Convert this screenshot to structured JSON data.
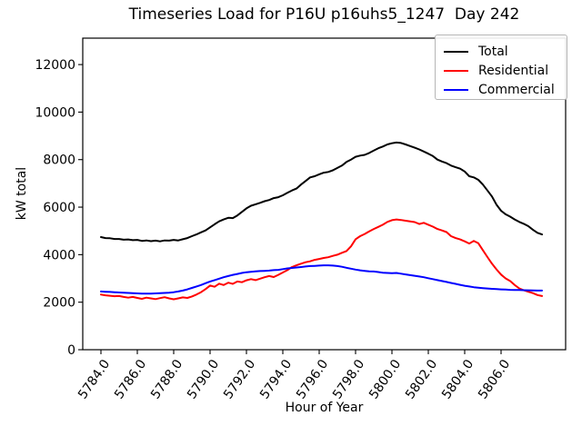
{
  "figure": {
    "title": "Timeseries Load for P16U p16uhs5_1247  Day 242"
  },
  "chart_data": {
    "type": "line",
    "title": "Timeseries Load for P16U p16uhs5_1247  Day 242",
    "xlabel": "Hour of Year",
    "ylabel": "kW total",
    "xlim": [
      5783.0,
      5809.55
    ],
    "ylim": [
      0,
      13112
    ],
    "grid": false,
    "legend_position": "upper right",
    "xticks": [
      5784,
      5786,
      5788,
      5790,
      5792,
      5794,
      5796,
      5798,
      5800,
      5802,
      5804,
      5806
    ],
    "xtick_labels": [
      "5784.0",
      "5786.0",
      "5788.0",
      "5790.0",
      "5792.0",
      "5794.0",
      "5796.0",
      "5798.0",
      "5800.0",
      "5802.0",
      "5804.0",
      "5806.0"
    ],
    "yticks": [
      0,
      2000,
      4000,
      6000,
      8000,
      10000,
      12000
    ],
    "ytick_labels": [
      "0",
      "2000",
      "4000",
      "6000",
      "8000",
      "10000",
      "12000"
    ],
    "x_start": 5784.0,
    "x_step": 0.25,
    "series": [
      {
        "name": "Total",
        "color": "#000000",
        "values": [
          4740,
          4700,
          4690,
          4660,
          4660,
          4630,
          4640,
          4610,
          4620,
          4580,
          4600,
          4570,
          4590,
          4560,
          4600,
          4590,
          4620,
          4600,
          4650,
          4700,
          4780,
          4850,
          4940,
          5020,
          5150,
          5280,
          5400,
          5480,
          5550,
          5540,
          5650,
          5800,
          5950,
          6060,
          6120,
          6180,
          6250,
          6300,
          6380,
          6420,
          6500,
          6600,
          6700,
          6780,
          6950,
          7100,
          7250,
          7300,
          7380,
          7450,
          7480,
          7550,
          7650,
          7750,
          7900,
          8000,
          8120,
          8170,
          8200,
          8280,
          8380,
          8480,
          8550,
          8640,
          8690,
          8720,
          8700,
          8640,
          8570,
          8500,
          8430,
          8340,
          8250,
          8150,
          8000,
          7920,
          7850,
          7750,
          7680,
          7620,
          7500,
          7300,
          7250,
          7150,
          6950,
          6700,
          6450,
          6100,
          5850,
          5700,
          5600,
          5480,
          5380,
          5300,
          5200,
          5050,
          4920,
          4850
        ]
      },
      {
        "name": "Residential",
        "color": "#ff0000",
        "values": [
          2320,
          2290,
          2270,
          2250,
          2260,
          2220,
          2190,
          2220,
          2180,
          2140,
          2190,
          2160,
          2130,
          2170,
          2210,
          2160,
          2120,
          2160,
          2200,
          2180,
          2240,
          2320,
          2420,
          2550,
          2700,
          2650,
          2780,
          2720,
          2820,
          2770,
          2870,
          2840,
          2920,
          2970,
          2930,
          2990,
          3050,
          3100,
          3060,
          3150,
          3250,
          3350,
          3480,
          3550,
          3620,
          3680,
          3720,
          3780,
          3820,
          3860,
          3890,
          3950,
          4000,
          4080,
          4150,
          4350,
          4650,
          4780,
          4870,
          4980,
          5080,
          5170,
          5260,
          5380,
          5450,
          5480,
          5460,
          5430,
          5400,
          5370,
          5290,
          5340,
          5260,
          5180,
          5080,
          5020,
          4950,
          4780,
          4700,
          4640,
          4560,
          4470,
          4580,
          4480,
          4190,
          3900,
          3620,
          3380,
          3160,
          3000,
          2890,
          2720,
          2580,
          2500,
          2440,
          2380,
          2300,
          2260
        ]
      },
      {
        "name": "Commercial",
        "color": "#0000ff",
        "values": [
          2450,
          2440,
          2430,
          2420,
          2410,
          2400,
          2390,
          2380,
          2370,
          2360,
          2360,
          2360,
          2370,
          2380,
          2390,
          2400,
          2420,
          2450,
          2490,
          2540,
          2600,
          2660,
          2720,
          2800,
          2870,
          2930,
          2990,
          3050,
          3100,
          3150,
          3190,
          3230,
          3260,
          3280,
          3300,
          3310,
          3320,
          3330,
          3350,
          3360,
          3390,
          3420,
          3440,
          3460,
          3480,
          3500,
          3520,
          3530,
          3540,
          3550,
          3550,
          3540,
          3520,
          3490,
          3450,
          3410,
          3370,
          3340,
          3320,
          3300,
          3290,
          3270,
          3240,
          3230,
          3220,
          3230,
          3200,
          3170,
          3140,
          3110,
          3080,
          3050,
          3010,
          2970,
          2930,
          2890,
          2850,
          2810,
          2770,
          2730,
          2690,
          2660,
          2630,
          2610,
          2590,
          2575,
          2560,
          2550,
          2540,
          2530,
          2520,
          2515,
          2510,
          2505,
          2500,
          2495,
          2490,
          2490
        ]
      }
    ]
  }
}
